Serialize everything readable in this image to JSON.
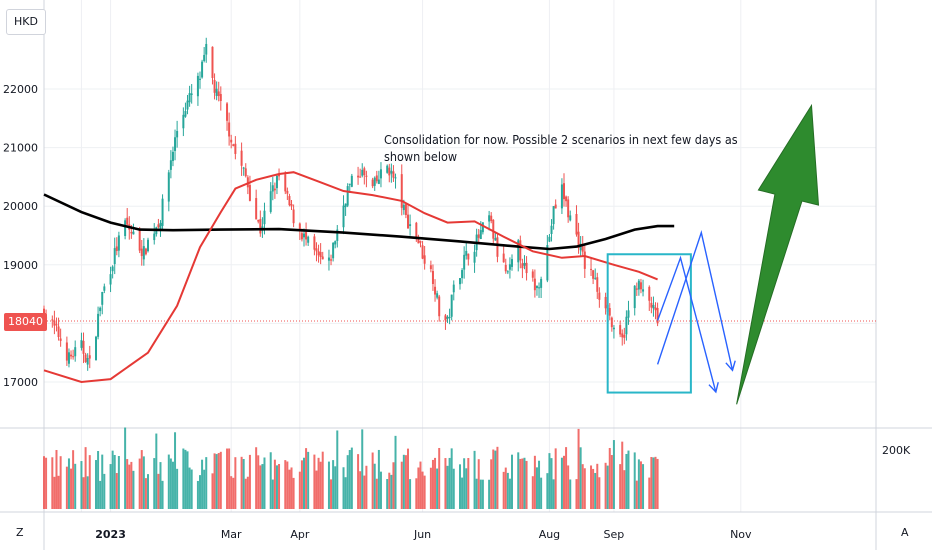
{
  "symbol": "HKD",
  "last_price_label": "18040",
  "volume_scale_label": "200K",
  "corner_left": "Z",
  "corner_right": "A",
  "annotation": {
    "line1": "Consolidation for now. Possible 2 scenarios in next few days as",
    "line2": "shown below"
  },
  "colors": {
    "up": "#26a69a",
    "down": "#ef5350",
    "ma_fast": "#e53935",
    "ma_slow": "#000000",
    "box": "#29b6c8",
    "scenario": "#2962ff",
    "arrow": "#2e8b2e"
  },
  "chart_data": {
    "type": "candlestick",
    "y_axis": {
      "ticks": [
        17000,
        18000,
        19000,
        20000,
        21000,
        22000
      ],
      "labels": [
        "17000",
        "18000",
        "19000",
        "20000",
        "21000",
        "22000"
      ]
    },
    "x_axis": {
      "ticks": [
        "2022-12-19",
        "2023-01-02",
        "2023-03-01",
        "2023-04-03",
        "2023-06-01",
        "2023-08-01",
        "2023-09-01",
        "2023-11-01"
      ],
      "labels": [
        "",
        "2023",
        "Mar",
        "Apr",
        "Jun",
        "Aug",
        "Sep",
        "Nov"
      ]
    },
    "last_price": 18040,
    "price_points": [
      [
        "2022-12-01",
        18200
      ],
      [
        "2022-12-08",
        17800
      ],
      [
        "2022-12-13",
        17400
      ],
      [
        "2022-12-19",
        17600
      ],
      [
        "2022-12-23",
        17300
      ],
      [
        "2022-12-29",
        18500
      ],
      [
        "2023-01-05",
        19300
      ],
      [
        "2023-01-09",
        19700
      ],
      [
        "2023-01-13",
        19500
      ],
      [
        "2023-01-18",
        19200
      ],
      [
        "2023-01-20",
        19400
      ],
      [
        "2023-01-26",
        19800
      ],
      [
        "2023-01-31",
        20800
      ],
      [
        "2023-02-03",
        21300
      ],
      [
        "2023-02-07",
        21700
      ],
      [
        "2023-02-10",
        21900
      ],
      [
        "2023-02-14",
        22200
      ],
      [
        "2023-02-17",
        22650
      ],
      [
        "2023-02-21",
        22000
      ],
      [
        "2023-02-24",
        21700
      ],
      [
        "2023-02-28",
        21300
      ],
      [
        "2023-03-03",
        20900
      ],
      [
        "2023-03-08",
        20500
      ],
      [
        "2023-03-13",
        19800
      ],
      [
        "2023-03-15",
        19600
      ],
      [
        "2023-03-20",
        20200
      ],
      [
        "2023-03-24",
        20500
      ],
      [
        "2023-03-28",
        20100
      ],
      [
        "2023-03-31",
        19800
      ],
      [
        "2023-04-06",
        19400
      ],
      [
        "2023-04-12",
        19100
      ],
      [
        "2023-04-17",
        19000
      ],
      [
        "2023-04-21",
        19600
      ],
      [
        "2023-04-26",
        20300
      ],
      [
        "2023-05-02",
        20600
      ],
      [
        "2023-05-08",
        20300
      ],
      [
        "2023-05-15",
        20700
      ],
      [
        "2023-05-19",
        20400
      ],
      [
        "2023-05-24",
        19800
      ],
      [
        "2023-05-29",
        19500
      ],
      [
        "2023-06-02",
        19100
      ],
      [
        "2023-06-06",
        18800
      ],
      [
        "2023-06-09",
        18200
      ],
      [
        "2023-06-13",
        18000
      ],
      [
        "2023-06-16",
        18600
      ],
      [
        "2023-06-21",
        19100
      ],
      [
        "2023-06-27",
        19400
      ],
      [
        "2023-07-03",
        19800
      ],
      [
        "2023-07-07",
        19200
      ],
      [
        "2023-07-12",
        18800
      ],
      [
        "2023-07-17",
        19300
      ],
      [
        "2023-07-21",
        18800
      ],
      [
        "2023-07-26",
        18600
      ],
      [
        "2023-07-31",
        19300
      ],
      [
        "2023-08-03",
        19900
      ],
      [
        "2023-08-07",
        20300
      ],
      [
        "2023-08-10",
        19900
      ],
      [
        "2023-08-15",
        19400
      ],
      [
        "2023-08-18",
        19000
      ],
      [
        "2023-08-22",
        18800
      ],
      [
        "2023-08-25",
        18500
      ],
      [
        "2023-08-29",
        18300
      ],
      [
        "2023-09-01",
        17800
      ],
      [
        "2023-09-05",
        17700
      ],
      [
        "2023-09-08",
        18200
      ],
      [
        "2023-09-12",
        18700
      ],
      [
        "2023-09-15",
        18500
      ],
      [
        "2023-09-19",
        18300
      ],
      [
        "2023-09-22",
        18040
      ]
    ],
    "ma_fast": [
      [
        "2022-12-01",
        17200
      ],
      [
        "2022-12-19",
        17000
      ],
      [
        "2023-01-02",
        17050
      ],
      [
        "2023-01-20",
        17500
      ],
      [
        "2023-02-03",
        18300
      ],
      [
        "2023-02-14",
        19300
      ],
      [
        "2023-02-24",
        19900
      ],
      [
        "2023-03-03",
        20300
      ],
      [
        "2023-03-13",
        20450
      ],
      [
        "2023-03-24",
        20550
      ],
      [
        "2023-03-31",
        20580
      ],
      [
        "2023-04-12",
        20420
      ],
      [
        "2023-04-24",
        20260
      ],
      [
        "2023-05-08",
        20190
      ],
      [
        "2023-05-22",
        20090
      ],
      [
        "2023-06-02",
        19880
      ],
      [
        "2023-06-13",
        19720
      ],
      [
        "2023-06-26",
        19740
      ],
      [
        "2023-07-10",
        19480
      ],
      [
        "2023-07-24",
        19230
      ],
      [
        "2023-08-07",
        19120
      ],
      [
        "2023-08-18",
        19150
      ],
      [
        "2023-09-01",
        19000
      ],
      [
        "2023-09-13",
        18880
      ],
      [
        "2023-09-22",
        18750
      ]
    ],
    "ma_slow": [
      [
        "2022-12-01",
        20200
      ],
      [
        "2022-12-19",
        19900
      ],
      [
        "2023-01-02",
        19720
      ],
      [
        "2023-01-16",
        19600
      ],
      [
        "2023-02-01",
        19590
      ],
      [
        "2023-02-24",
        19600
      ],
      [
        "2023-03-24",
        19610
      ],
      [
        "2023-04-24",
        19550
      ],
      [
        "2023-05-22",
        19480
      ],
      [
        "2023-06-19",
        19400
      ],
      [
        "2023-07-17",
        19310
      ],
      [
        "2023-08-01",
        19270
      ],
      [
        "2023-08-14",
        19310
      ],
      [
        "2023-08-28",
        19440
      ],
      [
        "2023-09-11",
        19600
      ],
      [
        "2023-09-22",
        19660
      ],
      [
        "2023-09-30",
        19660
      ]
    ],
    "consolidation_box": {
      "from": "2023-08-29",
      "to": "2023-10-08",
      "high": 19180,
      "low": 16820
    },
    "scenario_a": [
      [
        "2023-09-22",
        18050
      ],
      [
        "2023-10-03",
        19120
      ],
      [
        "2023-10-20",
        16830
      ]
    ],
    "scenario_b": [
      [
        "2023-09-22",
        17300
      ],
      [
        "2023-10-13",
        19550
      ],
      [
        "2023-10-28",
        17200
      ]
    ],
    "bullish_arrow": {
      "from": [
        "2023-10-30",
        16620
      ],
      "to": [
        "2023-12-05",
        21720
      ]
    }
  }
}
